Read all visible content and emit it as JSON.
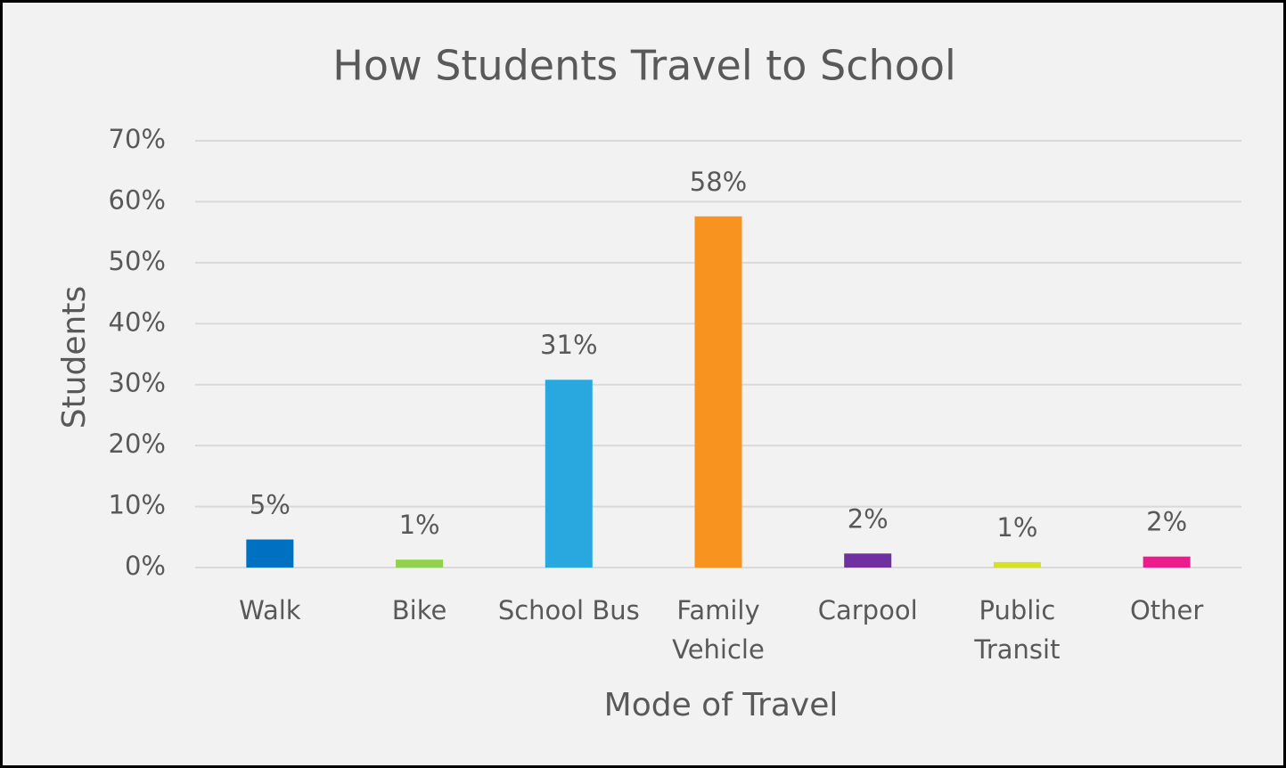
{
  "chart_data": {
    "type": "bar",
    "title": "How Students Travel to School",
    "x_label": "Mode of Travel",
    "y_label": "Students",
    "categories": [
      "Walk",
      "Bike",
      "School Bus",
      "Family Vehicle",
      "Carpool",
      "Public Transit",
      "Other"
    ],
    "values": [
      4.6,
      1.3,
      30.8,
      57.6,
      2.3,
      0.9,
      1.8
    ],
    "value_labels": [
      "5%",
      "1%",
      "31%",
      "58%",
      "2%",
      "1%",
      "2%"
    ],
    "colors": [
      "#0070c0",
      "#92d050",
      "#29a8e0",
      "#f7931e",
      "#7030a0",
      "#d4e02a",
      "#ec1c8c"
    ],
    "ylim": [
      0,
      70
    ],
    "yticks": [
      {
        "value": 0,
        "label": "0%"
      },
      {
        "value": 10,
        "label": "10%"
      },
      {
        "value": 20,
        "label": "20%"
      },
      {
        "value": 30,
        "label": "30%"
      },
      {
        "value": 40,
        "label": "40%"
      },
      {
        "value": 50,
        "label": "50%"
      },
      {
        "value": 60,
        "label": "60%"
      },
      {
        "value": 70,
        "label": "70%"
      }
    ],
    "grid": true
  }
}
